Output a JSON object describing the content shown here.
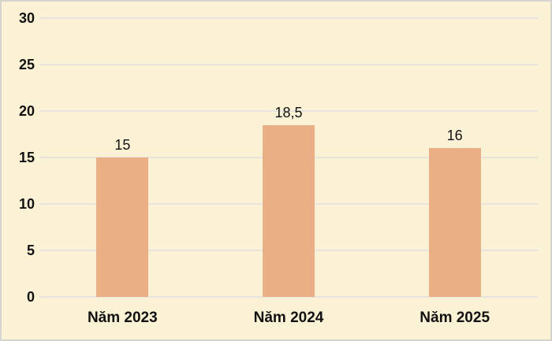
{
  "chart_data": {
    "type": "bar",
    "title": "",
    "xlabel": "",
    "ylabel": "",
    "categories": [
      "Năm 2023",
      "Năm 2024",
      "Năm 2025"
    ],
    "values": [
      15,
      18.5,
      16
    ],
    "value_labels": [
      "15",
      "18,5",
      "16"
    ],
    "ylim": [
      0,
      30
    ],
    "yticks": [
      0,
      5,
      10,
      15,
      20,
      25,
      30
    ],
    "ytick_labels": [
      "0",
      "5",
      "10",
      "15",
      "20",
      "25",
      "30"
    ],
    "grid": true,
    "legend": "none",
    "colors": {
      "bar": "#EAAF85",
      "background": "#FBF1D4",
      "gridline": "#E6E4DC",
      "frame_border": "#D6D4CF",
      "text": "#111111"
    }
  }
}
